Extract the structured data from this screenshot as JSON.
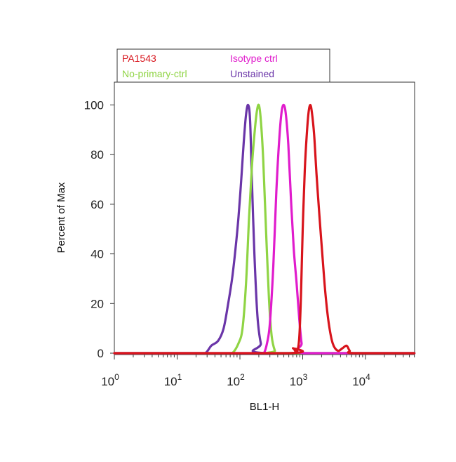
{
  "chart_data": {
    "type": "line",
    "xlabel": "BL1-H",
    "ylabel": "Percent of Max",
    "x_scale": "log",
    "xlim": [
      1,
      60000
    ],
    "ylim": [
      0,
      110
    ],
    "x_ticks": [
      {
        "value": 1,
        "base": "10",
        "exp": "0"
      },
      {
        "value": 10,
        "base": "10",
        "exp": "1"
      },
      {
        "value": 100,
        "base": "10",
        "exp": "2"
      },
      {
        "value": 1000,
        "base": "10",
        "exp": "3"
      },
      {
        "value": 10000,
        "base": "10",
        "exp": "4"
      }
    ],
    "y_ticks": [
      {
        "value": 0,
        "label": "0"
      },
      {
        "value": 20,
        "label": "20"
      },
      {
        "value": 40,
        "label": "40"
      },
      {
        "value": 60,
        "label": "60"
      },
      {
        "value": 80,
        "label": "80"
      },
      {
        "value": 100,
        "label": "100"
      }
    ],
    "legend_position": "top",
    "grid": false,
    "series": [
      {
        "name": "Unstained",
        "color": "#6a35a8",
        "points": [
          [
            1,
            0
          ],
          [
            20,
            0
          ],
          [
            28,
            0
          ],
          [
            35,
            3
          ],
          [
            45,
            5
          ],
          [
            55,
            10
          ],
          [
            65,
            20
          ],
          [
            75,
            30
          ],
          [
            85,
            42
          ],
          [
            95,
            55
          ],
          [
            105,
            70
          ],
          [
            115,
            85
          ],
          [
            125,
            96
          ],
          [
            135,
            100
          ],
          [
            145,
            94
          ],
          [
            155,
            70
          ],
          [
            170,
            40
          ],
          [
            190,
            15
          ],
          [
            215,
            4
          ],
          [
            250,
            0
          ],
          [
            60000,
            0
          ]
        ]
      },
      {
        "name": "No-primary-ctrl",
        "color": "#8fd444",
        "points": [
          [
            1,
            0
          ],
          [
            55,
            0
          ],
          [
            75,
            0
          ],
          [
            95,
            4
          ],
          [
            110,
            10
          ],
          [
            125,
            28
          ],
          [
            140,
            55
          ],
          [
            155,
            75
          ],
          [
            170,
            88
          ],
          [
            185,
            97
          ],
          [
            200,
            100
          ],
          [
            215,
            94
          ],
          [
            235,
            78
          ],
          [
            260,
            50
          ],
          [
            290,
            22
          ],
          [
            320,
            7
          ],
          [
            360,
            1
          ],
          [
            400,
            0
          ],
          [
            60000,
            0
          ]
        ]
      },
      {
        "name": "Isotype ctrl",
        "color": "#e01ccc",
        "points": [
          [
            1,
            0
          ],
          [
            200,
            0
          ],
          [
            240,
            0
          ],
          [
            270,
            4
          ],
          [
            300,
            12
          ],
          [
            340,
            35
          ],
          [
            380,
            65
          ],
          [
            420,
            85
          ],
          [
            460,
            97
          ],
          [
            500,
            100
          ],
          [
            540,
            96
          ],
          [
            590,
            84
          ],
          [
            650,
            62
          ],
          [
            720,
            42
          ],
          [
            800,
            28
          ],
          [
            880,
            14
          ],
          [
            960,
            4
          ],
          [
            1050,
            0
          ],
          [
            60000,
            0
          ]
        ]
      },
      {
        "name": "PA1543",
        "color": "#d8141c",
        "points": [
          [
            1,
            0
          ],
          [
            600,
            0
          ],
          [
            700,
            2
          ],
          [
            800,
            0.5
          ],
          [
            880,
            6
          ],
          [
            940,
            24
          ],
          [
            1000,
            50
          ],
          [
            1080,
            74
          ],
          [
            1160,
            88
          ],
          [
            1240,
            97
          ],
          [
            1320,
            100
          ],
          [
            1400,
            97
          ],
          [
            1520,
            88
          ],
          [
            1660,
            72
          ],
          [
            1850,
            55
          ],
          [
            2050,
            40
          ],
          [
            2300,
            24
          ],
          [
            2600,
            12
          ],
          [
            3000,
            4
          ],
          [
            3600,
            1
          ],
          [
            4300,
            2
          ],
          [
            5000,
            3
          ],
          [
            5600,
            1
          ],
          [
            6500,
            0
          ],
          [
            60000,
            0
          ]
        ]
      }
    ]
  },
  "legend": {
    "items": [
      {
        "label": "PA1543",
        "color": "#d8141c"
      },
      {
        "label": "Isotype ctrl",
        "color": "#e01ccc"
      },
      {
        "label": "No-primary-ctrl",
        "color": "#8fd444"
      },
      {
        "label": "Unstained",
        "color": "#6a35a8"
      }
    ]
  }
}
